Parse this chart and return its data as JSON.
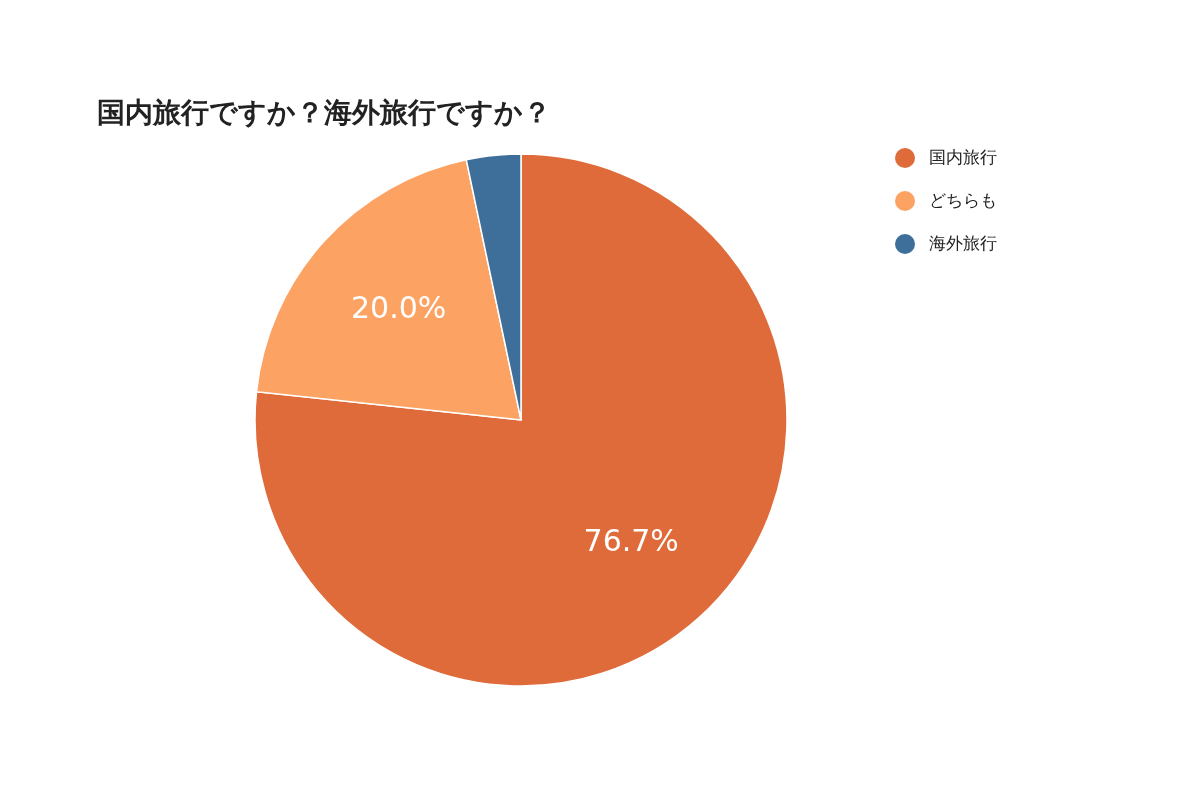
{
  "chart_data": {
    "type": "pie",
    "title": "国内旅行ですか？海外旅行ですか？",
    "categories": [
      "国内旅行",
      "どちらも",
      "海外旅行"
    ],
    "values": [
      76.7,
      20.0,
      3.3
    ],
    "colors": [
      "#e06b3a",
      "#fca364",
      "#3e6f9b"
    ],
    "value_labels": [
      "76.7%",
      "20.0%",
      null
    ],
    "legend": "top right"
  }
}
